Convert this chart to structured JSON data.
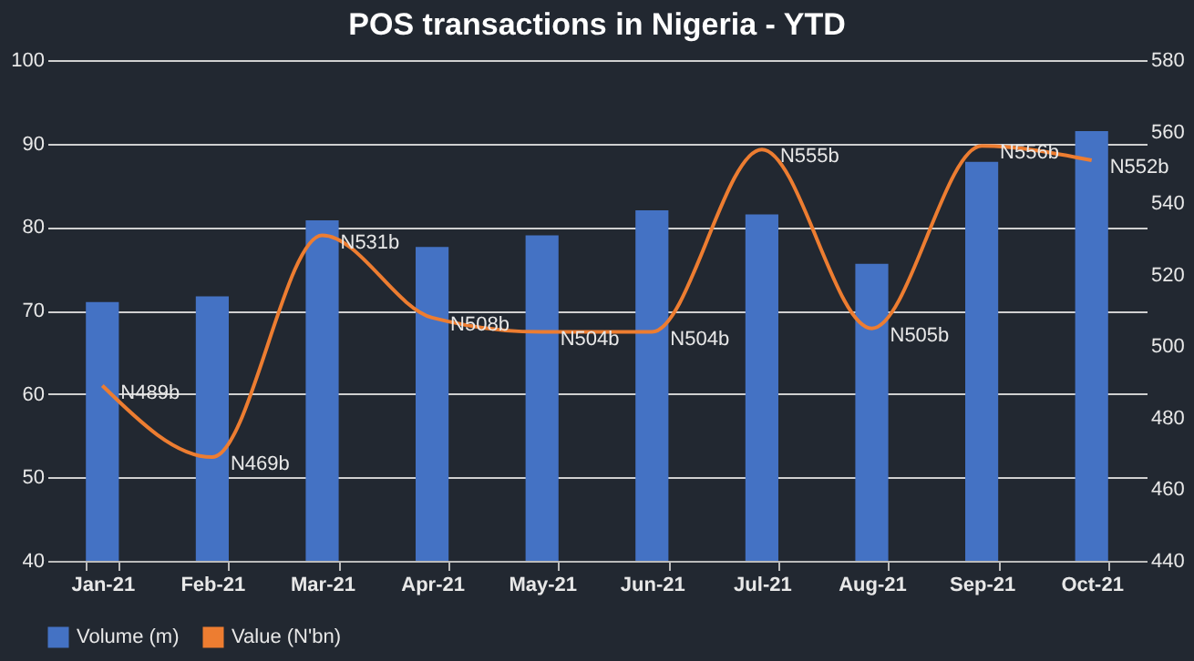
{
  "chart_data": {
    "type": "bar",
    "title": "POS transactions in Nigeria - YTD",
    "categories": [
      "Jan-21",
      "Feb-21",
      "Mar-21",
      "Apr-21",
      "May-21",
      "Jun-21",
      "Jul-21",
      "Aug-21",
      "Sep-21",
      "Oct-21"
    ],
    "series": [
      {
        "name": "Volume (m)",
        "color": "#4472c4",
        "values": [
          71,
          71.7,
          80.8,
          77.6,
          79,
          82,
          81.5,
          75.6,
          87.8,
          91.5
        ]
      },
      {
        "name": "Value (N'bn)",
        "type": "line",
        "axis": "y2",
        "color": "#ed7d31",
        "values": [
          489,
          469,
          531,
          508,
          504,
          504,
          555,
          505,
          556,
          552
        ],
        "value_labels": [
          "N489b",
          "N469b",
          "N531b",
          "N508b",
          "N504b",
          "N504b",
          "N555b",
          "N505b",
          "N556b",
          "N552b"
        ]
      }
    ],
    "ylim": [
      40,
      100
    ],
    "yticks": [
      40,
      50,
      60,
      70,
      80,
      90,
      100
    ],
    "y2lim": [
      440,
      580
    ],
    "y2ticks": [
      440,
      460,
      480,
      500,
      520,
      540,
      560,
      580
    ],
    "grid": "y",
    "legend": "bottom",
    "marker": "none",
    "line_style": "solid"
  }
}
